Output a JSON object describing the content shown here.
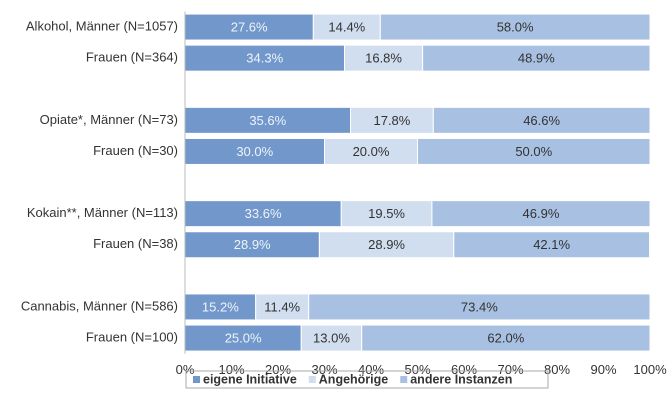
{
  "chart_data": {
    "type": "stacked-barh",
    "categories": [
      "Alkohol, Männer (N=1057)",
      "Frauen (N=364)",
      null,
      "Opiate*, Männer (N=73)",
      "Frauen (N=30)",
      null,
      "Kokain**, Männer (N=113)",
      "Frauen (N=38)",
      null,
      "Cannabis, Männer (N=586)",
      "Frauen (N=100)"
    ],
    "series": [
      {
        "name": "eigene Initiative",
        "color": "#7298cb",
        "label_color": "#eef3fa",
        "values": [
          27.6,
          34.3,
          null,
          35.6,
          30.0,
          null,
          33.6,
          28.9,
          null,
          15.2,
          25.0
        ],
        "value_labels": [
          "27.6%",
          "34.3%",
          null,
          "35.6%",
          "30.0%",
          null,
          "33.6%",
          "28.9%",
          null,
          "15.2%",
          "25.0%"
        ]
      },
      {
        "name": "Angehörige",
        "color": "#d0deef",
        "label_color": "#333333",
        "values": [
          14.4,
          16.8,
          null,
          17.8,
          20.0,
          null,
          19.5,
          28.9,
          null,
          11.4,
          13.0
        ],
        "value_labels": [
          "14.4%",
          "16.8%",
          null,
          "17.8%",
          "20.0%",
          null,
          "19.5%",
          "28.9%",
          null,
          "11.4%",
          "13.0%"
        ]
      },
      {
        "name": "andere Instanzen",
        "color": "#a8c1e2",
        "label_color": "#333333",
        "values": [
          58.0,
          48.9,
          null,
          46.6,
          50.0,
          null,
          46.9,
          42.1,
          null,
          73.4,
          62.0
        ],
        "value_labels": [
          "58.0%",
          "48.9%",
          null,
          "46.6%",
          "50.0%",
          null,
          "46.9%",
          "42.1%",
          null,
          "73.4%",
          "62.0%"
        ]
      }
    ],
    "xlim": [
      0,
      100
    ],
    "xticks": [
      {
        "value": 0,
        "label": "0%"
      },
      {
        "value": 10,
        "label": "10%"
      },
      {
        "value": 20,
        "label": "20%"
      },
      {
        "value": 30,
        "label": "30%"
      },
      {
        "value": 40,
        "label": "40%"
      },
      {
        "value": 50,
        "label": "50%"
      },
      {
        "value": 60,
        "label": "60%"
      },
      {
        "value": 70,
        "label": "70%"
      },
      {
        "value": 80,
        "label": "80%"
      },
      {
        "value": 90,
        "label": "90%"
      },
      {
        "value": 100,
        "label": "100%"
      }
    ],
    "grid": false,
    "legend": "bottom"
  }
}
